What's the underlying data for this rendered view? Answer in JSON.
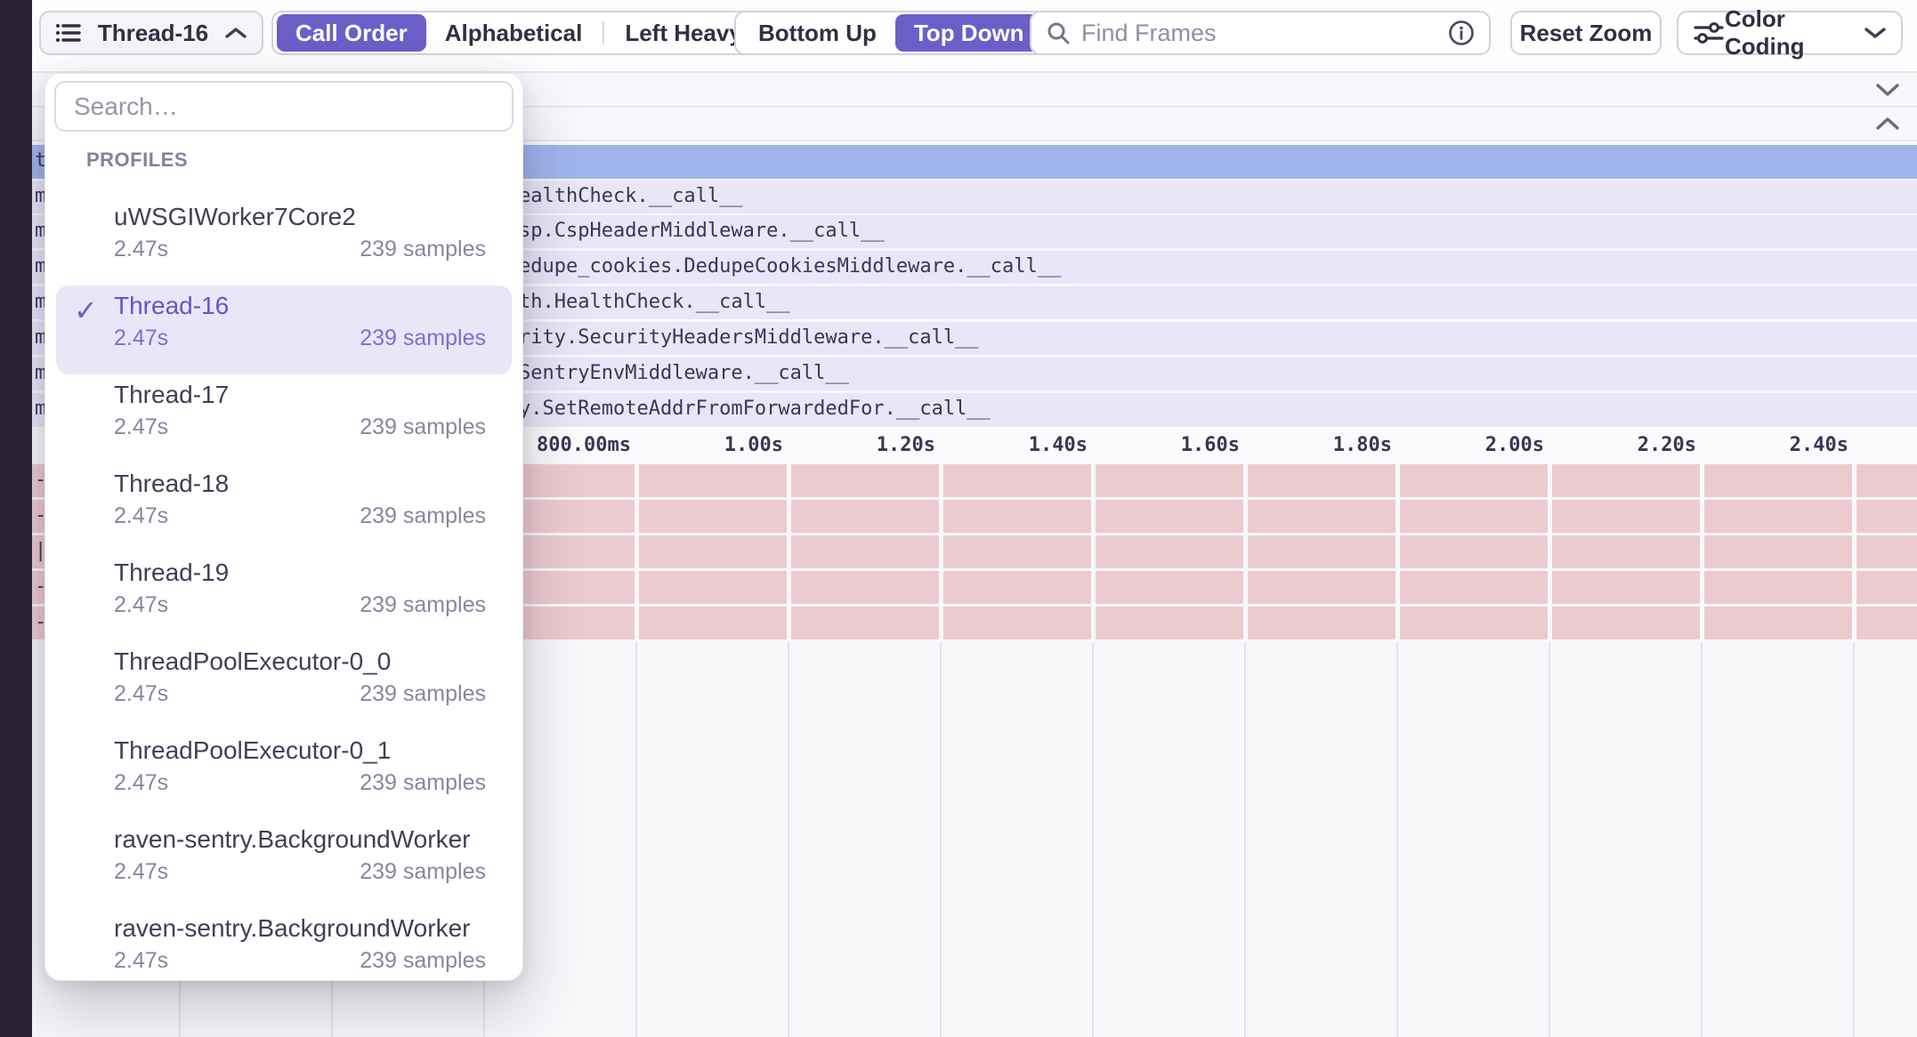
{
  "toolbar": {
    "thread_selector_label": "Thread-16",
    "sort_options": [
      "Call Order",
      "Alphabetical",
      "Left Heavy"
    ],
    "sort_selected": "Call Order",
    "direction_options": [
      "Bottom Up",
      "Top Down"
    ],
    "direction_selected": "Top Down",
    "find_frames_placeholder": "Find Frames",
    "reset_zoom_label": "Reset Zoom",
    "color_coding_label": "Color Coding"
  },
  "dropdown": {
    "search_placeholder": "Search…",
    "section_label": "PROFILES",
    "items": [
      {
        "name": "uWSGIWorker7Core2",
        "duration": "2.47s",
        "samples": "239 samples",
        "selected": false
      },
      {
        "name": "Thread-16",
        "duration": "2.47s",
        "samples": "239 samples",
        "selected": true
      },
      {
        "name": "Thread-17",
        "duration": "2.47s",
        "samples": "239 samples",
        "selected": false
      },
      {
        "name": "Thread-18",
        "duration": "2.47s",
        "samples": "239 samples",
        "selected": false
      },
      {
        "name": "Thread-19",
        "duration": "2.47s",
        "samples": "239 samples",
        "selected": false
      },
      {
        "name": "ThreadPoolExecutor-0_0",
        "duration": "2.47s",
        "samples": "239 samples",
        "selected": false
      },
      {
        "name": "ThreadPoolExecutor-0_1",
        "duration": "2.47s",
        "samples": "239 samples",
        "selected": false
      },
      {
        "name": "raven-sentry.BackgroundWorker",
        "duration": "2.47s",
        "samples": "239 samples",
        "selected": false
      },
      {
        "name": "raven-sentry.BackgroundWorker",
        "duration": "2.47s",
        "samples": "239 samples",
        "selected": false
      }
    ],
    "check_glyph": "✓"
  },
  "flamegraph": {
    "top_row_stub": "t",
    "rows": [
      {
        "stub": "m",
        "label": "ealthCheck.__call__"
      },
      {
        "stub": "m",
        "label": "sp.CspHeaderMiddleware.__call__"
      },
      {
        "stub": "m",
        "label": "edupe_cookies.DedupeCookiesMiddleware.__call__"
      },
      {
        "stub": "m",
        "label": "th.HealthCheck.__call__"
      },
      {
        "stub": "m",
        "label": "rity.SecurityHeadersMiddleware.__call__"
      },
      {
        "stub": "m",
        "label": "SentryEnvMiddleware.__call__"
      },
      {
        "stub": "m",
        "label": "y.SetRemoteAddrFromForwardedFor.__call__"
      }
    ],
    "axis_ticks": [
      "800.00ms",
      "1.00s",
      "1.20s",
      "1.40s",
      "1.60s",
      "1.80s",
      "2.00s",
      "2.20s",
      "2.40s"
    ],
    "pink_rows": [
      {
        "stub": "-"
      },
      {
        "stub": "-"
      },
      {
        "stub": "|"
      },
      {
        "stub": "-"
      },
      {
        "stub": "-"
      }
    ]
  },
  "colors": {
    "accent": "#6c5ec8",
    "blue_row": "#a0b5ed",
    "lavender_row": "#e7e7f7",
    "pink_row": "#eccbd0",
    "dark_strip": "#2b2233"
  }
}
